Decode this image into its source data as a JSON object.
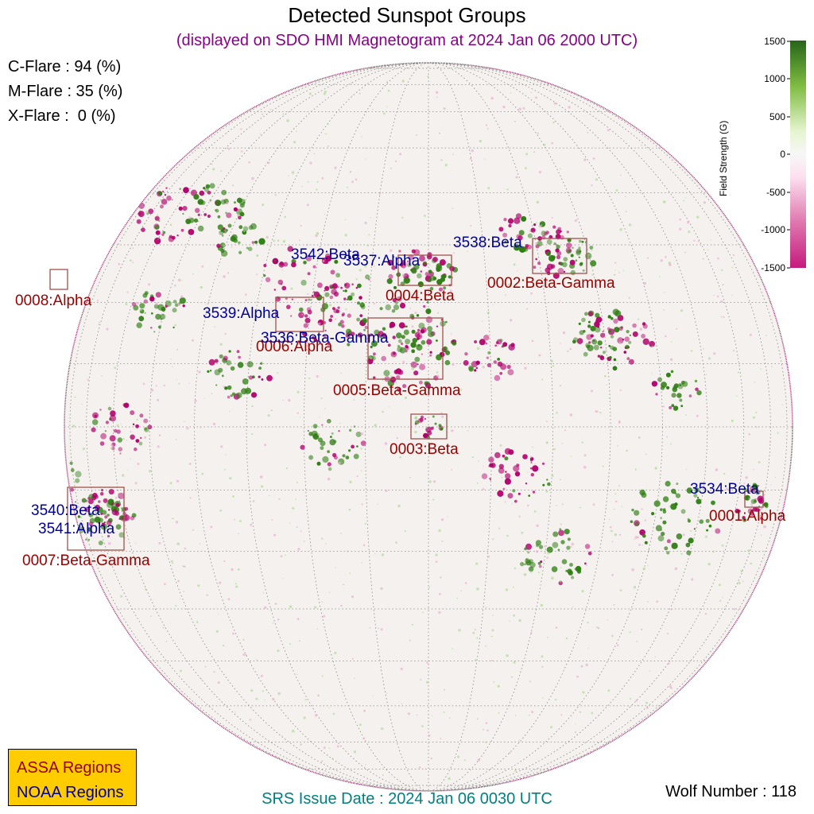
{
  "header": {
    "title": "Detected Sunspot Groups",
    "subtitle": "(displayed on SDO HMI Magnetogram at 2024 Jan 06 2000 UTC)"
  },
  "flare_probabilities": {
    "c_flare": "C-Flare : 94 (%)",
    "m_flare": "M-Flare : 35 (%)",
    "x_flare": "X-Flare :  0 (%)"
  },
  "colors": {
    "assa": "#990000",
    "noaa": "#000099",
    "subtitle": "#880088",
    "srs": "#008080",
    "legend_bg": "#FFCC00",
    "box": "#A0524D",
    "positive_field": "#2E7D12",
    "negative_field": "#B0006A"
  },
  "colorbar": {
    "label": "Field Strength (G)",
    "ticks": [
      "1500",
      "1000",
      "500",
      "0",
      "-500",
      "-1000",
      "-1500"
    ]
  },
  "assa_regions": [
    {
      "label": "0001:Alpha"
    },
    {
      "label": "0002:Beta-Gamma"
    },
    {
      "label": "0003:Beta"
    },
    {
      "label": "0004:Beta"
    },
    {
      "label": "0005:Beta-Gamma"
    },
    {
      "label": "0006:Alpha"
    },
    {
      "label": "0007:Beta-Gamma"
    },
    {
      "label": "0008:Alpha"
    }
  ],
  "noaa_regions": [
    {
      "label": "3534:Beta"
    },
    {
      "label": "3536:Beta-Gamma"
    },
    {
      "label": "3537:Alpha"
    },
    {
      "label": "3538:Beta"
    },
    {
      "label": "3539:Alpha"
    },
    {
      "label": "3540:Beta"
    },
    {
      "label": "3541:Alpha"
    },
    {
      "label": "3542:Beta"
    }
  ],
  "legend": {
    "assa_label": "ASSA Regions",
    "noaa_label": "NOAA Regions"
  },
  "footer": {
    "srs_issue_date": "SRS Issue Date : 2024 Jan 06 0030 UTC",
    "wolf_number": "Wolf Number : 118"
  }
}
